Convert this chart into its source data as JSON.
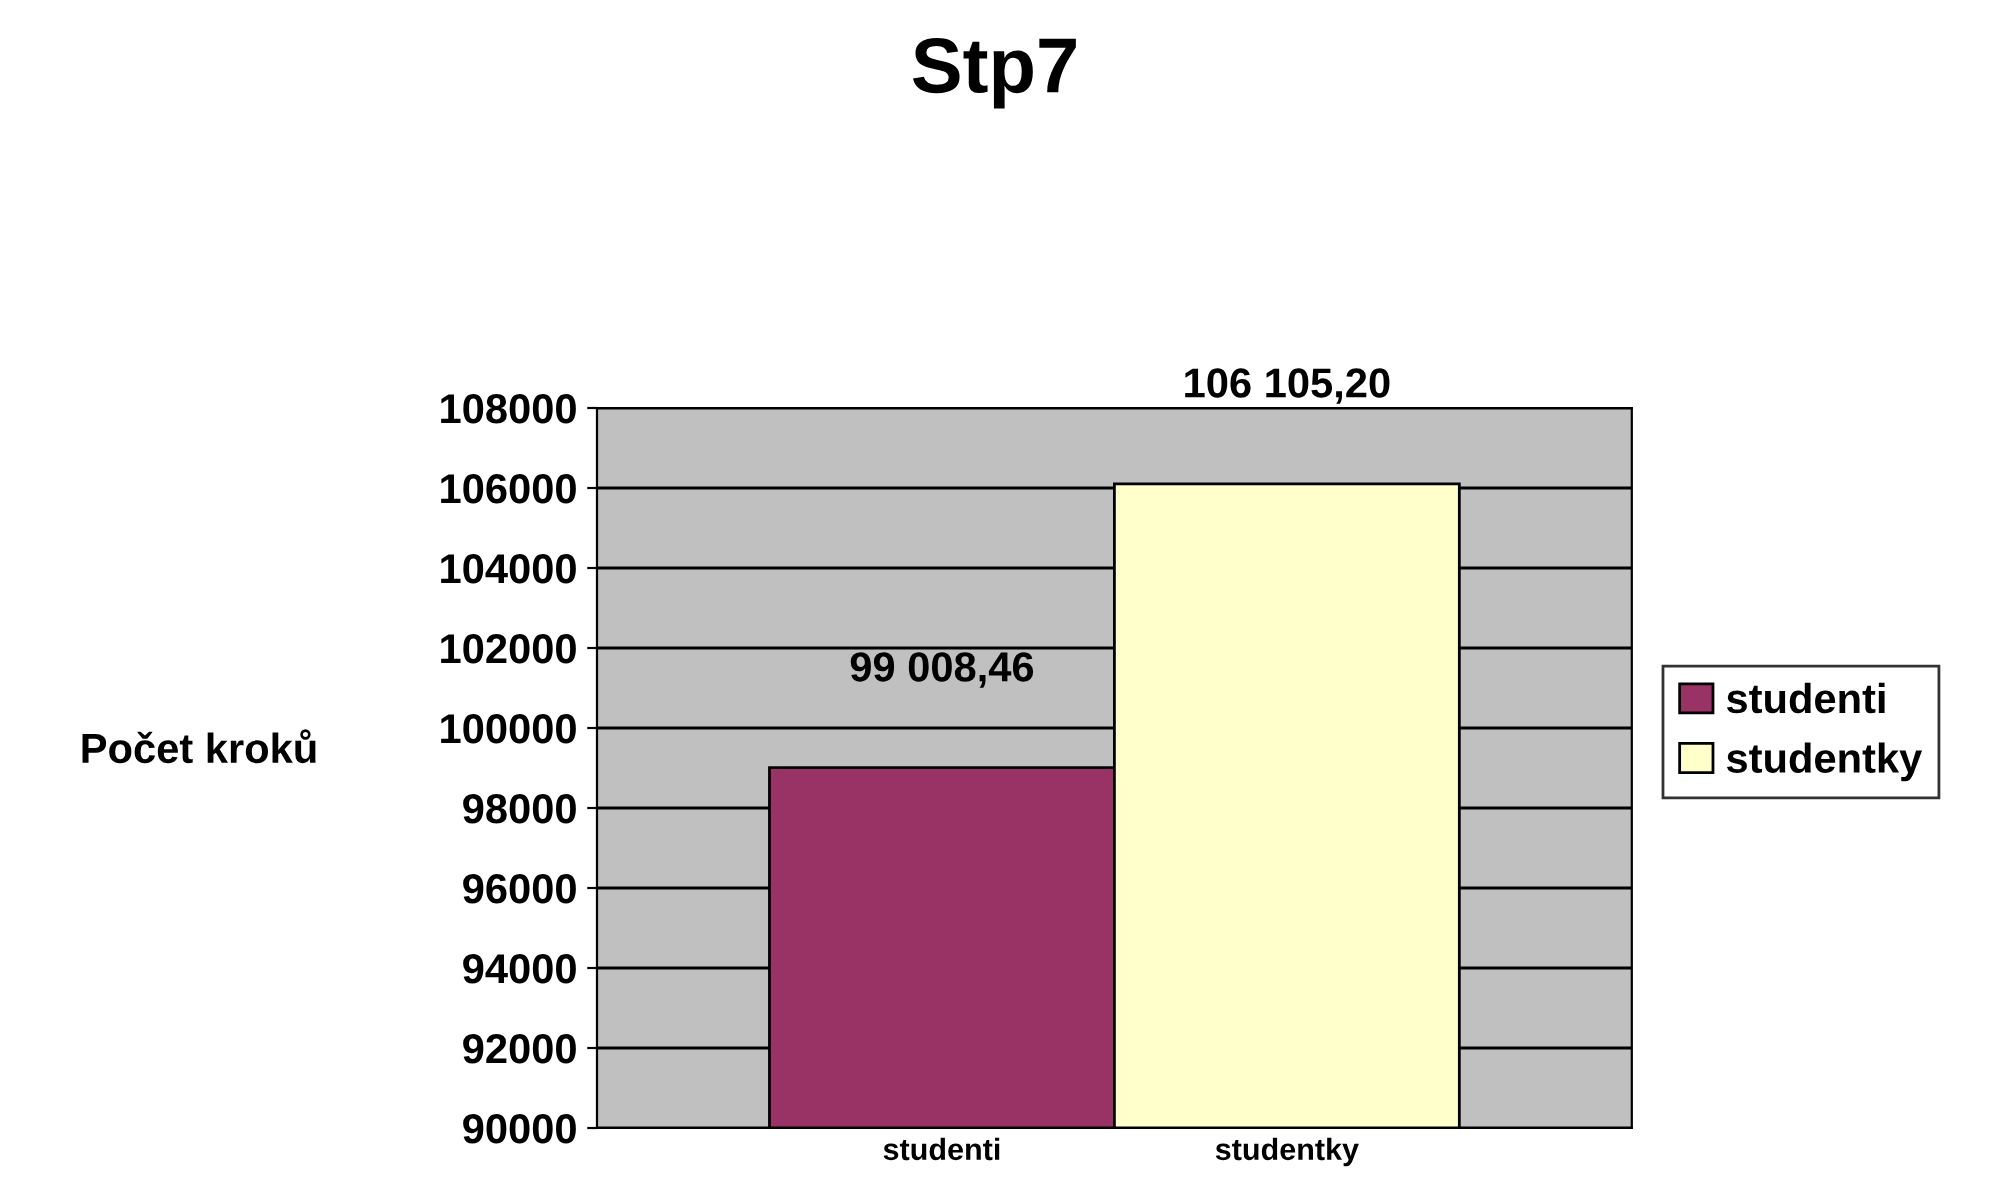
{
  "chart_data": {
    "type": "bar",
    "title": "Stp7",
    "ylabel": "Počet kroků",
    "categories": [
      "studenti",
      "studentky"
    ],
    "series": [
      {
        "name": "studenti",
        "color": "#993366",
        "values": [
          99008.46,
          null
        ],
        "value_labels": [
          "99 008,46",
          null
        ]
      },
      {
        "name": "studentky",
        "color": "#ffffcc",
        "values": [
          null,
          106105.2
        ],
        "value_labels": [
          null,
          "106 105,20"
        ]
      }
    ],
    "ylim": [
      90000,
      108000
    ],
    "yticks": [
      90000,
      92000,
      94000,
      96000,
      98000,
      100000,
      102000,
      104000,
      106000,
      108000
    ],
    "grid": "y",
    "legend": "right"
  }
}
